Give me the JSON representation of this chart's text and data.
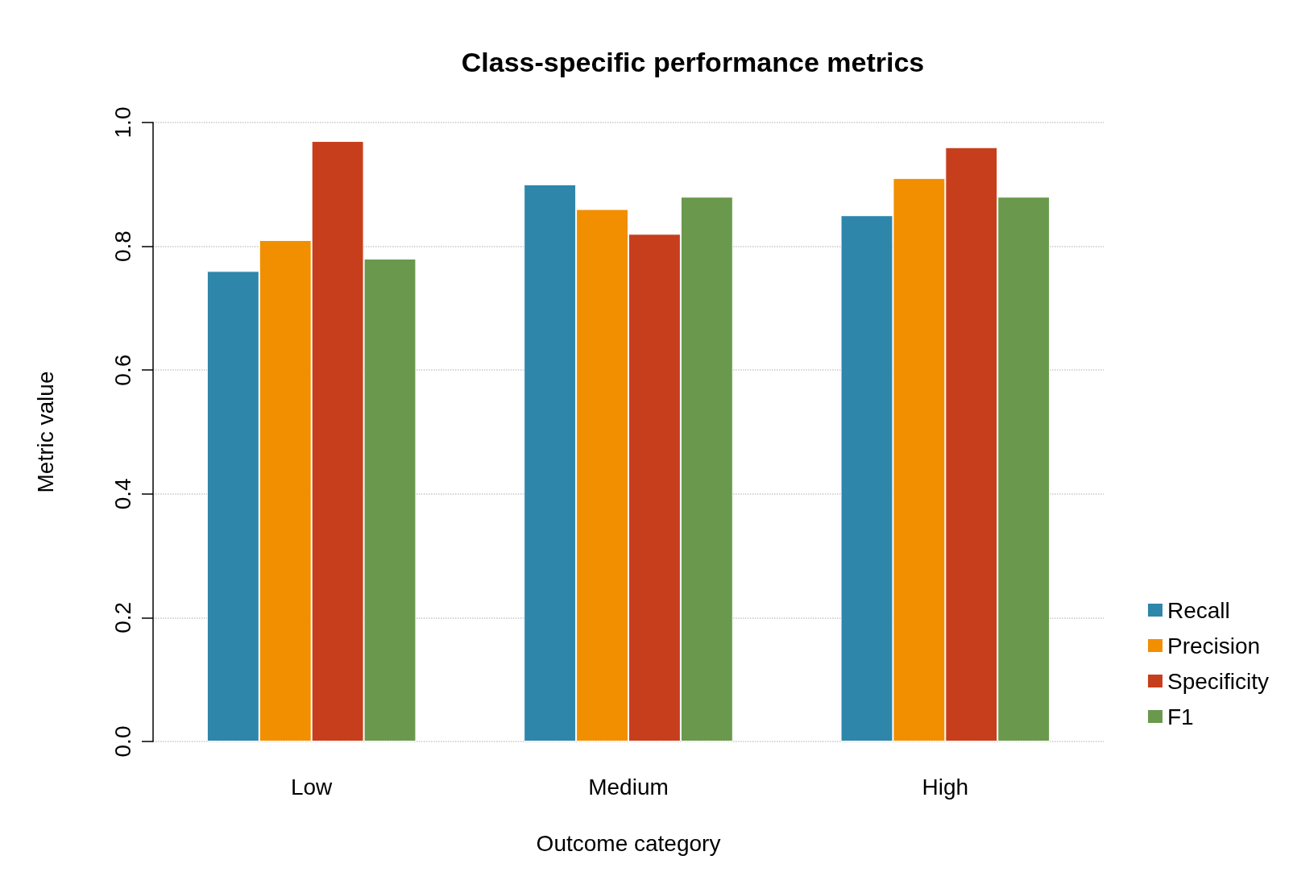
{
  "chart_data": {
    "type": "bar",
    "title": "Class-specific performance metrics",
    "xlabel": "Outcome category",
    "ylabel": "Metric value",
    "categories": [
      "Low",
      "Medium",
      "High"
    ],
    "series": [
      {
        "name": "Recall",
        "color": "#2e86ab",
        "values": [
          0.76,
          0.9,
          0.85
        ]
      },
      {
        "name": "Precision",
        "color": "#f18f01",
        "values": [
          0.81,
          0.86,
          0.91
        ]
      },
      {
        "name": "Specificity",
        "color": "#c73e1d",
        "values": [
          0.97,
          0.82,
          0.96
        ]
      },
      {
        "name": "F1",
        "color": "#6a994e",
        "values": [
          0.78,
          0.88,
          0.88
        ]
      }
    ],
    "ylim": [
      0,
      1
    ],
    "yticks": [
      {
        "value": 0,
        "label": "0.0"
      },
      0.2,
      0.4,
      0.6,
      0.8,
      {
        "value": 1,
        "label": "1.0"
      }
    ],
    "grid": "y",
    "legend": "bottom right"
  }
}
